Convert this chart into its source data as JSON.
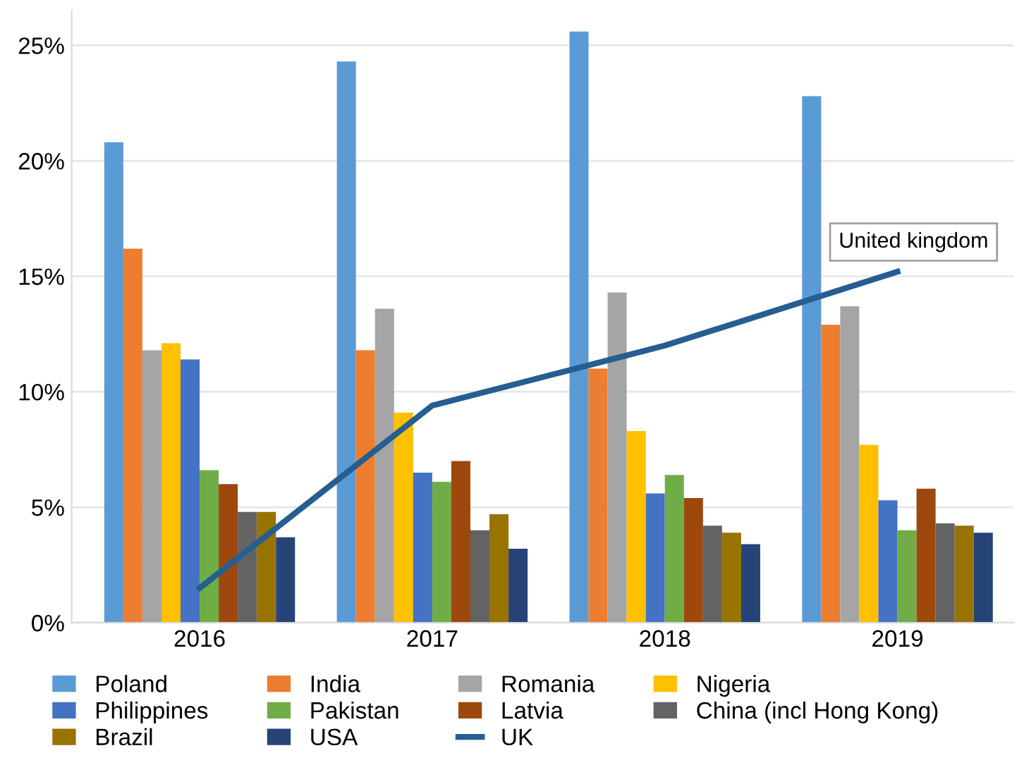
{
  "chart_data": {
    "type": "bar",
    "categories": [
      "2016",
      "2017",
      "2018",
      "2019"
    ],
    "series": [
      {
        "name": "Poland",
        "color": "#5b9bd5",
        "values": [
          20.8,
          24.3,
          25.6,
          22.8
        ]
      },
      {
        "name": "India",
        "color": "#ed7d31",
        "values": [
          16.2,
          11.8,
          11.0,
          12.9
        ]
      },
      {
        "name": "Romania",
        "color": "#a5a5a5",
        "values": [
          11.8,
          13.6,
          14.3,
          13.7
        ]
      },
      {
        "name": "Nigeria",
        "color": "#ffc000",
        "values": [
          12.1,
          9.1,
          8.3,
          7.7
        ]
      },
      {
        "name": "Philippines",
        "color": "#4472c4",
        "values": [
          11.4,
          6.5,
          5.6,
          5.3
        ]
      },
      {
        "name": "Pakistan",
        "color": "#70ad47",
        "values": [
          6.6,
          6.1,
          6.4,
          4.0
        ]
      },
      {
        "name": "Latvia",
        "color": "#9e480e",
        "values": [
          6.0,
          7.0,
          5.4,
          5.8
        ]
      },
      {
        "name": "China (incl Hong Kong)",
        "color": "#636363",
        "values": [
          4.8,
          4.0,
          4.2,
          4.3
        ]
      },
      {
        "name": "Brazil",
        "color": "#997300",
        "values": [
          4.8,
          4.7,
          3.9,
          4.2
        ]
      },
      {
        "name": "USA",
        "color": "#264478",
        "values": [
          3.7,
          3.2,
          3.4,
          3.9
        ]
      },
      {
        "name": "UK",
        "type": "line",
        "color": "#255e91",
        "values": [
          1.5,
          9.4,
          12.0,
          15.2
        ]
      }
    ],
    "ylim": [
      0,
      26.5
    ],
    "yticks": [
      {
        "value": 0,
        "label": "0%"
      },
      {
        "value": 5,
        "label": "5%"
      },
      {
        "value": 10,
        "label": "10%"
      },
      {
        "value": 15,
        "label": "15%"
      },
      {
        "value": 20,
        "label": "20%"
      },
      {
        "value": 25,
        "label": "25%"
      }
    ],
    "grid": "y",
    "legend": "bottom",
    "annotations": [
      {
        "text": "United kingdom",
        "x": "2019",
        "y": 15.2
      }
    ]
  }
}
